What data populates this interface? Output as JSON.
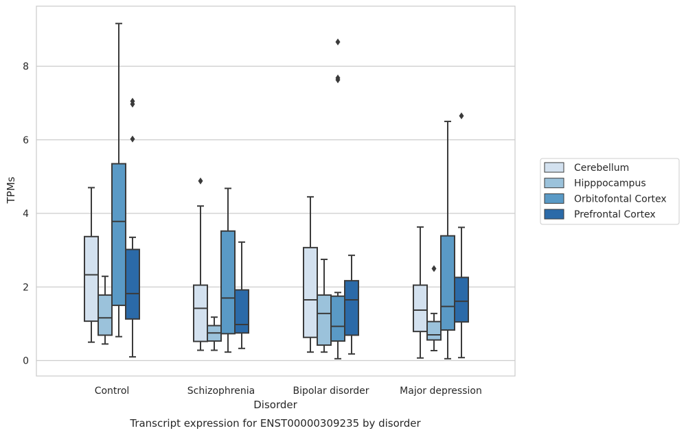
{
  "chart_data": {
    "type": "box",
    "title": "Transcript expression for ENST00000309235 by disorder",
    "xlabel": "Disorder",
    "ylabel": "TPMs",
    "ylim": [
      -0.4,
      9.8
    ],
    "yticks": [
      0,
      2,
      4,
      6,
      8
    ],
    "grid": true,
    "legend_position": "right",
    "categories": [
      "Control",
      "Schizophrenia",
      "Bipolar disorder",
      "Major depression"
    ],
    "series": [
      {
        "name": "Cerebellum",
        "color": "#d3e1ef",
        "boxes": [
          {
            "whisker_low": 0.5,
            "q1": 1.07,
            "median": 2.33,
            "q3": 3.37,
            "whisker_high": 4.7,
            "outliers": []
          },
          {
            "whisker_low": 0.28,
            "q1": 0.52,
            "median": 1.42,
            "q3": 2.05,
            "whisker_high": 4.2,
            "outliers": [
              4.88
            ]
          },
          {
            "whisker_low": 0.23,
            "q1": 0.63,
            "median": 1.65,
            "q3": 3.07,
            "whisker_high": 4.45,
            "outliers": []
          },
          {
            "whisker_low": 0.07,
            "q1": 0.79,
            "median": 1.37,
            "q3": 2.05,
            "whisker_high": 3.63,
            "outliers": []
          }
        ]
      },
      {
        "name": "Hipppocampus",
        "color": "#9bc2db",
        "boxes": [
          {
            "whisker_low": 0.45,
            "q1": 0.69,
            "median": 1.16,
            "q3": 1.78,
            "whisker_high": 2.29,
            "outliers": []
          },
          {
            "whisker_low": 0.28,
            "q1": 0.53,
            "median": 0.75,
            "q3": 0.95,
            "whisker_high": 1.18,
            "outliers": []
          },
          {
            "whisker_low": 0.23,
            "q1": 0.42,
            "median": 1.28,
            "q3": 1.78,
            "whisker_high": 2.75,
            "outliers": []
          },
          {
            "whisker_low": 0.27,
            "q1": 0.56,
            "median": 0.7,
            "q3": 1.06,
            "whisker_high": 1.28,
            "outliers": [
              2.5
            ]
          }
        ]
      },
      {
        "name": "Orbitofontal Cortex",
        "color": "#5a9ac6",
        "boxes": [
          {
            "whisker_low": 0.65,
            "q1": 1.5,
            "median": 3.78,
            "q3": 5.35,
            "whisker_high": 9.16,
            "outliers": []
          },
          {
            "whisker_low": 0.23,
            "q1": 0.73,
            "median": 1.7,
            "q3": 3.52,
            "whisker_high": 4.68,
            "outliers": []
          },
          {
            "whisker_low": 0.05,
            "q1": 0.53,
            "median": 0.93,
            "q3": 1.75,
            "whisker_high": 1.85,
            "outliers": [
              7.63,
              7.68,
              8.66
            ]
          },
          {
            "whisker_low": 0.05,
            "q1": 0.83,
            "median": 1.47,
            "q3": 3.39,
            "whisker_high": 6.5,
            "outliers": []
          }
        ]
      },
      {
        "name": "Prefrontal Cortex",
        "color": "#2b6aa8",
        "boxes": [
          {
            "whisker_low": 0.1,
            "q1": 1.13,
            "median": 1.82,
            "q3": 3.02,
            "whisker_high": 3.35,
            "outliers": [
              6.02,
              6.97,
              7.05
            ]
          },
          {
            "whisker_low": 0.33,
            "q1": 0.75,
            "median": 0.98,
            "q3": 1.92,
            "whisker_high": 3.22,
            "outliers": []
          },
          {
            "whisker_low": 0.18,
            "q1": 0.69,
            "median": 1.65,
            "q3": 2.17,
            "whisker_high": 2.86,
            "outliers": []
          },
          {
            "whisker_low": 0.08,
            "q1": 1.05,
            "median": 1.61,
            "q3": 2.26,
            "whisker_high": 3.62,
            "outliers": [
              6.65
            ]
          }
        ]
      }
    ]
  }
}
